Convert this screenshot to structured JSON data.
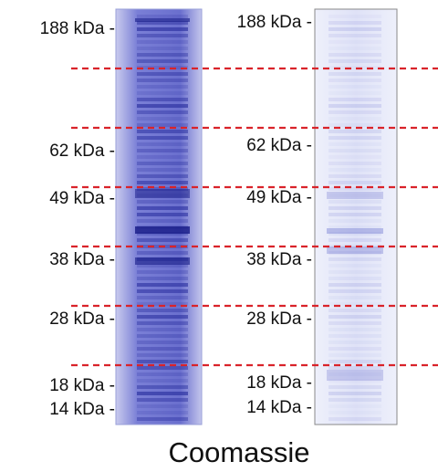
{
  "left_gel": {
    "markers": [
      "188 kDa -",
      "62 kDa -",
      "49 kDa -",
      "38 kDa -",
      "28 kDa -",
      "18 kDa -",
      "14 kDa -"
    ]
  },
  "right_gel": {
    "markers": [
      "188 kDa -",
      "62 kDa -",
      "49 kDa -",
      "38 kDa -",
      "28 kDa -",
      "18 kDa -",
      "14 kDa -"
    ]
  },
  "caption": "Coomassie"
}
